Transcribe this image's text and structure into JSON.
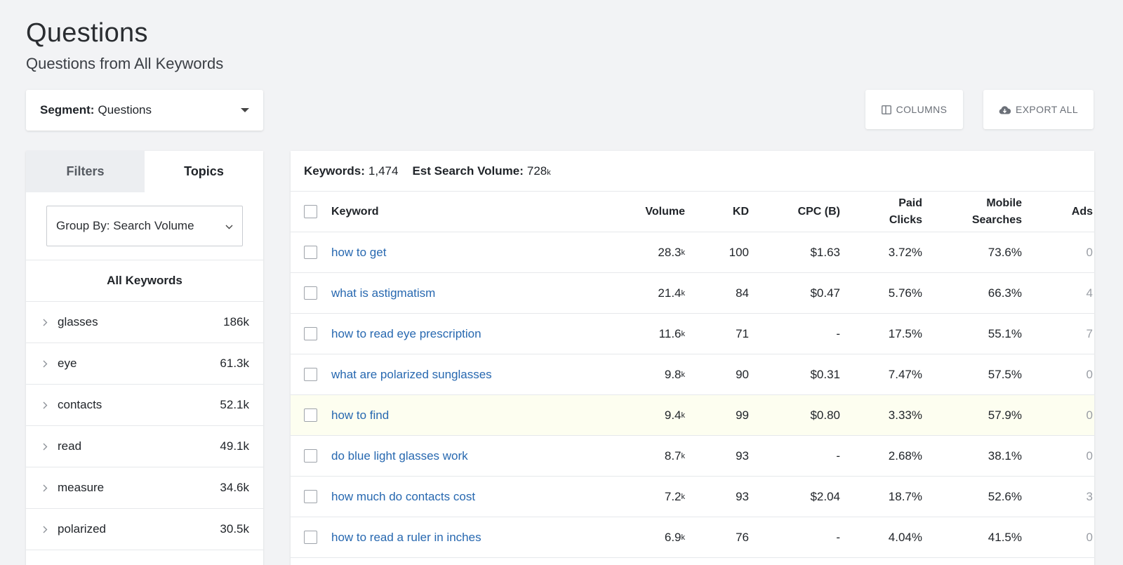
{
  "page": {
    "title": "Questions",
    "subtitle": "Questions from All Keywords"
  },
  "segment": {
    "label": "Segment:",
    "value": "Questions"
  },
  "toolbar": {
    "columns_label": "COLUMNS",
    "export_label": "EXPORT ALL"
  },
  "left_panel": {
    "tabs": [
      {
        "label": "Filters",
        "active": false
      },
      {
        "label": "Topics",
        "active": true
      }
    ],
    "group_by": "Group By: Search Volume",
    "all_keywords_label": "All Keywords",
    "topics": [
      {
        "name": "glasses",
        "value": "186k"
      },
      {
        "name": "eye",
        "value": "61.3k"
      },
      {
        "name": "contacts",
        "value": "52.1k"
      },
      {
        "name": "read",
        "value": "49.1k"
      },
      {
        "name": "measure",
        "value": "34.6k"
      },
      {
        "name": "polarized",
        "value": "30.5k"
      }
    ]
  },
  "summary": {
    "keywords_label": "Keywords:",
    "keywords_value": "1,474",
    "volume_label": "Est Search Volume:",
    "volume_value": "728",
    "volume_suffix": "k"
  },
  "table": {
    "headers": {
      "keyword": "Keyword",
      "volume": "Volume",
      "kd": "KD",
      "cpc": "CPC (B)",
      "paid_line1": "Paid",
      "paid_line2": "Clicks",
      "mobile_line1": "Mobile",
      "mobile_line2": "Searches",
      "ads": "Ads"
    },
    "rows": [
      {
        "keyword": "how to get",
        "volume": "28.3",
        "volume_suffix": "k",
        "kd": "100",
        "cpc": "$1.63",
        "paid": "3.72%",
        "mobile": "73.6%",
        "ads": "0",
        "highlight": false
      },
      {
        "keyword": "what is astigmatism",
        "volume": "21.4",
        "volume_suffix": "k",
        "kd": "84",
        "cpc": "$0.47",
        "paid": "5.76%",
        "mobile": "66.3%",
        "ads": "4",
        "highlight": false
      },
      {
        "keyword": "how to read eye prescription",
        "volume": "11.6",
        "volume_suffix": "k",
        "kd": "71",
        "cpc": "-",
        "paid": "17.5%",
        "mobile": "55.1%",
        "ads": "7",
        "highlight": false
      },
      {
        "keyword": "what are polarized sunglasses",
        "volume": "9.8",
        "volume_suffix": "k",
        "kd": "90",
        "cpc": "$0.31",
        "paid": "7.47%",
        "mobile": "57.5%",
        "ads": "0",
        "highlight": false
      },
      {
        "keyword": "how to find",
        "volume": "9.4",
        "volume_suffix": "k",
        "kd": "99",
        "cpc": "$0.80",
        "paid": "3.33%",
        "mobile": "57.9%",
        "ads": "0",
        "highlight": true
      },
      {
        "keyword": "do blue light glasses work",
        "volume": "8.7",
        "volume_suffix": "k",
        "kd": "93",
        "cpc": "-",
        "paid": "2.68%",
        "mobile": "38.1%",
        "ads": "0",
        "highlight": false
      },
      {
        "keyword": "how much do contacts cost",
        "volume": "7.2",
        "volume_suffix": "k",
        "kd": "93",
        "cpc": "$2.04",
        "paid": "18.7%",
        "mobile": "52.6%",
        "ads": "3",
        "highlight": false
      },
      {
        "keyword": "how to read a ruler in inches",
        "volume": "6.9",
        "volume_suffix": "k",
        "kd": "76",
        "cpc": "-",
        "paid": "4.04%",
        "mobile": "41.5%",
        "ads": "0",
        "highlight": false
      }
    ]
  },
  "colors": {
    "link": "#2768b0",
    "highlight_row": "#fdfef0",
    "background": "#f2f3f5"
  }
}
